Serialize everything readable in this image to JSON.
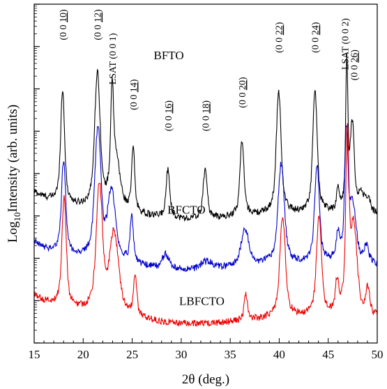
{
  "chart_data": {
    "type": "line",
    "title": "",
    "xlabel": "2θ (deg.)",
    "ylabel_prefix": "Log",
    "ylabel_sub": "10",
    "ylabel_suffix": "Intensity (arb. units)",
    "xlim": [
      15,
      50
    ],
    "y_log_decades": 8,
    "x_ticks": [
      15,
      20,
      25,
      30,
      35,
      40,
      45,
      50
    ],
    "y_scale": "log",
    "y_tick_labels_shown": false,
    "grid": false,
    "legend": "none",
    "series": [
      {
        "name": "BFTO",
        "color": "#000000",
        "label": "BFTO",
        "label_x": 27.2,
        "label_y": 6.7,
        "baseline": 3.0,
        "peaks": [
          {
            "x": 17.9,
            "h": 2.7,
            "w": 0.18
          },
          {
            "x": 21.45,
            "h": 3.2,
            "w": 0.25
          },
          {
            "x": 22.95,
            "h": 2.2,
            "w": 0.12
          },
          {
            "x": 23.3,
            "h": 1.2,
            "w": 0.4
          },
          {
            "x": 25.1,
            "h": 1.5,
            "w": 0.14
          },
          {
            "x": 28.65,
            "h": 1.2,
            "w": 0.16
          },
          {
            "x": 32.45,
            "h": 1.2,
            "w": 0.18
          },
          {
            "x": 36.2,
            "h": 1.8,
            "w": 0.18
          },
          {
            "x": 39.95,
            "h": 2.9,
            "w": 0.22
          },
          {
            "x": 43.65,
            "h": 2.9,
            "w": 0.2
          },
          {
            "x": 46.0,
            "h": 0.5,
            "w": 0.12
          },
          {
            "x": 46.9,
            "h": 3.5,
            "w": 0.1
          },
          {
            "x": 47.45,
            "h": 2.0,
            "w": 0.18
          },
          {
            "x": 48.4,
            "h": 0.4,
            "w": 0.3
          },
          {
            "x": 49.1,
            "h": 0.3,
            "w": 0.2
          }
        ]
      },
      {
        "name": "BFCTO",
        "color": "#0000cc",
        "label": "BFCTO",
        "label_x": 28.6,
        "label_y": 3.05,
        "baseline": 1.8,
        "peaks": [
          {
            "x": 18.0,
            "h": 2.2,
            "w": 0.2
          },
          {
            "x": 21.5,
            "h": 3.1,
            "w": 0.28
          },
          {
            "x": 22.9,
            "h": 1.6,
            "w": 0.35
          },
          {
            "x": 24.95,
            "h": 1.1,
            "w": 0.15
          },
          {
            "x": 28.4,
            "h": 0.35,
            "w": 0.3
          },
          {
            "x": 32.6,
            "h": 0.2,
            "w": 0.6
          },
          {
            "x": 36.5,
            "h": 0.9,
            "w": 0.35
          },
          {
            "x": 40.2,
            "h": 2.4,
            "w": 0.28
          },
          {
            "x": 43.85,
            "h": 2.3,
            "w": 0.22
          },
          {
            "x": 46.0,
            "h": 0.6,
            "w": 0.15
          },
          {
            "x": 46.85,
            "h": 3.0,
            "w": 0.15
          },
          {
            "x": 47.5,
            "h": 1.3,
            "w": 0.3
          },
          {
            "x": 48.9,
            "h": 0.4,
            "w": 0.2
          }
        ]
      },
      {
        "name": "LBFCTO",
        "color": "#ee0000",
        "label": "LBFCTO",
        "label_x": 29.8,
        "label_y": 0.9,
        "baseline": 0.55,
        "peaks": [
          {
            "x": 18.05,
            "h": 2.6,
            "w": 0.2
          },
          {
            "x": 21.65,
            "h": 3.0,
            "w": 0.28
          },
          {
            "x": 23.15,
            "h": 1.9,
            "w": 0.4
          },
          {
            "x": 25.3,
            "h": 0.9,
            "w": 0.15
          },
          {
            "x": 36.6,
            "h": 0.6,
            "w": 0.15
          },
          {
            "x": 40.35,
            "h": 2.4,
            "w": 0.25
          },
          {
            "x": 44.05,
            "h": 2.4,
            "w": 0.22
          },
          {
            "x": 45.9,
            "h": 0.7,
            "w": 0.15
          },
          {
            "x": 46.95,
            "h": 4.1,
            "w": 0.14
          },
          {
            "x": 47.6,
            "h": 2.0,
            "w": 0.3
          },
          {
            "x": 49.05,
            "h": 0.6,
            "w": 0.18
          }
        ]
      }
    ],
    "annotations": [
      {
        "prefix": "(0 0 ",
        "u": "10",
        "suffix": ")",
        "x": 17.9,
        "y": 7.15
      },
      {
        "prefix": "(0 0 ",
        "u": "12",
        "suffix": ")",
        "x": 21.45,
        "y": 7.15
      },
      {
        "prefix": "LSAT (0 0 1)",
        "u": "",
        "suffix": "",
        "x": 22.95,
        "y": 6.1
      },
      {
        "prefix": "(0 0 ",
        "u": "14",
        "suffix": ")",
        "x": 25.1,
        "y": 5.5
      },
      {
        "prefix": "(0 0 ",
        "u": "16",
        "suffix": ")",
        "x": 28.65,
        "y": 5.0
      },
      {
        "prefix": "(0 0 ",
        "u": "18",
        "suffix": ")",
        "x": 32.45,
        "y": 5.0
      },
      {
        "prefix": "(0 0 ",
        "u": "20",
        "suffix": ")",
        "x": 36.2,
        "y": 5.55
      },
      {
        "prefix": "(0 0 ",
        "u": "22",
        "suffix": ")",
        "x": 39.95,
        "y": 6.85
      },
      {
        "prefix": "(0 0 ",
        "u": "24",
        "suffix": ")",
        "x": 43.65,
        "y": 6.85
      },
      {
        "prefix": "LSAT (0 0 2)",
        "u": "",
        "suffix": "",
        "x": 46.7,
        "y": 6.45
      },
      {
        "prefix": "(0 0 ",
        "u": "26",
        "suffix": ")",
        "x": 47.6,
        "y": 6.2
      }
    ]
  }
}
